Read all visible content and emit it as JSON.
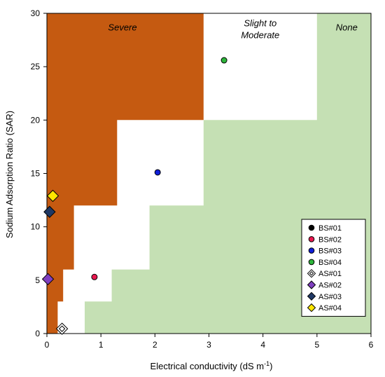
{
  "chart_data": {
    "type": "scatter",
    "title": "",
    "xlabel": "Electrical conductivity (dS m",
    "xlabel_superscript": "-1",
    "xlabel_suffix": ")",
    "ylabel": "Sodium Adsorption Ratio (SAR)",
    "xlim": [
      0,
      6
    ],
    "ylim": [
      0,
      30
    ],
    "x_ticks": [
      "0",
      "1",
      "2",
      "3",
      "4",
      "5",
      "6"
    ],
    "y_ticks": [
      "0",
      "5",
      "10",
      "15",
      "20",
      "25",
      "30"
    ],
    "grid": false,
    "legend_position": "bottom-right",
    "zones": [
      {
        "name": "Severe",
        "color": "#c55a11",
        "boundary": [
          [
            0,
            0
          ],
          [
            0.2,
            0
          ],
          [
            0.2,
            3
          ],
          [
            0.3,
            3
          ],
          [
            0.3,
            6
          ],
          [
            0.5,
            6
          ],
          [
            0.5,
            12
          ],
          [
            1.3,
            12
          ],
          [
            1.3,
            20
          ],
          [
            2.9,
            20
          ],
          [
            2.9,
            30
          ],
          [
            0,
            30
          ]
        ]
      },
      {
        "name": "None",
        "color": "#c5e0b4",
        "boundary": [
          [
            0.7,
            0
          ],
          [
            6,
            0
          ],
          [
            6,
            30
          ],
          [
            5,
            30
          ],
          [
            5,
            20
          ],
          [
            2.9,
            20
          ],
          [
            2.9,
            12
          ],
          [
            1.9,
            12
          ],
          [
            1.9,
            6
          ],
          [
            1.2,
            6
          ],
          [
            1.2,
            3
          ],
          [
            0.7,
            3
          ]
        ]
      }
    ],
    "zone_labels": [
      {
        "lines": [
          "Severe"
        ],
        "x": 1.4,
        "y": 28.4
      },
      {
        "lines": [
          "Slight to",
          "Moderate"
        ],
        "x": 3.95,
        "y": 28.8
      },
      {
        "lines": [
          "None"
        ],
        "x": 5.55,
        "y": 28.4
      }
    ],
    "series": [
      {
        "name": "BS#01",
        "marker": "circle",
        "color": "#000000",
        "points": []
      },
      {
        "name": "BS#02",
        "marker": "circle",
        "color": "#e8174f",
        "points": [
          [
            0.88,
            5.3
          ]
        ]
      },
      {
        "name": "BS#03",
        "marker": "circle",
        "color": "#0f1ed8",
        "points": [
          [
            2.05,
            15.1
          ]
        ]
      },
      {
        "name": "BS#04",
        "marker": "circle",
        "color": "#2db53a",
        "points": [
          [
            3.28,
            25.6
          ]
        ]
      },
      {
        "name": "AS#01",
        "marker": "diamond",
        "color": "#ffffff",
        "points": [
          [
            0.28,
            0.45
          ]
        ]
      },
      {
        "name": "AS#02",
        "marker": "diamond",
        "color": "#7f3fbf",
        "points": [
          [
            0.02,
            5.1
          ]
        ]
      },
      {
        "name": "AS#03",
        "marker": "diamond",
        "color": "#1f3864",
        "points": [
          [
            0.05,
            11.4
          ]
        ]
      },
      {
        "name": "AS#04",
        "marker": "diamond",
        "color": "#ffe600",
        "points": [
          [
            0.11,
            12.9
          ]
        ]
      }
    ]
  }
}
